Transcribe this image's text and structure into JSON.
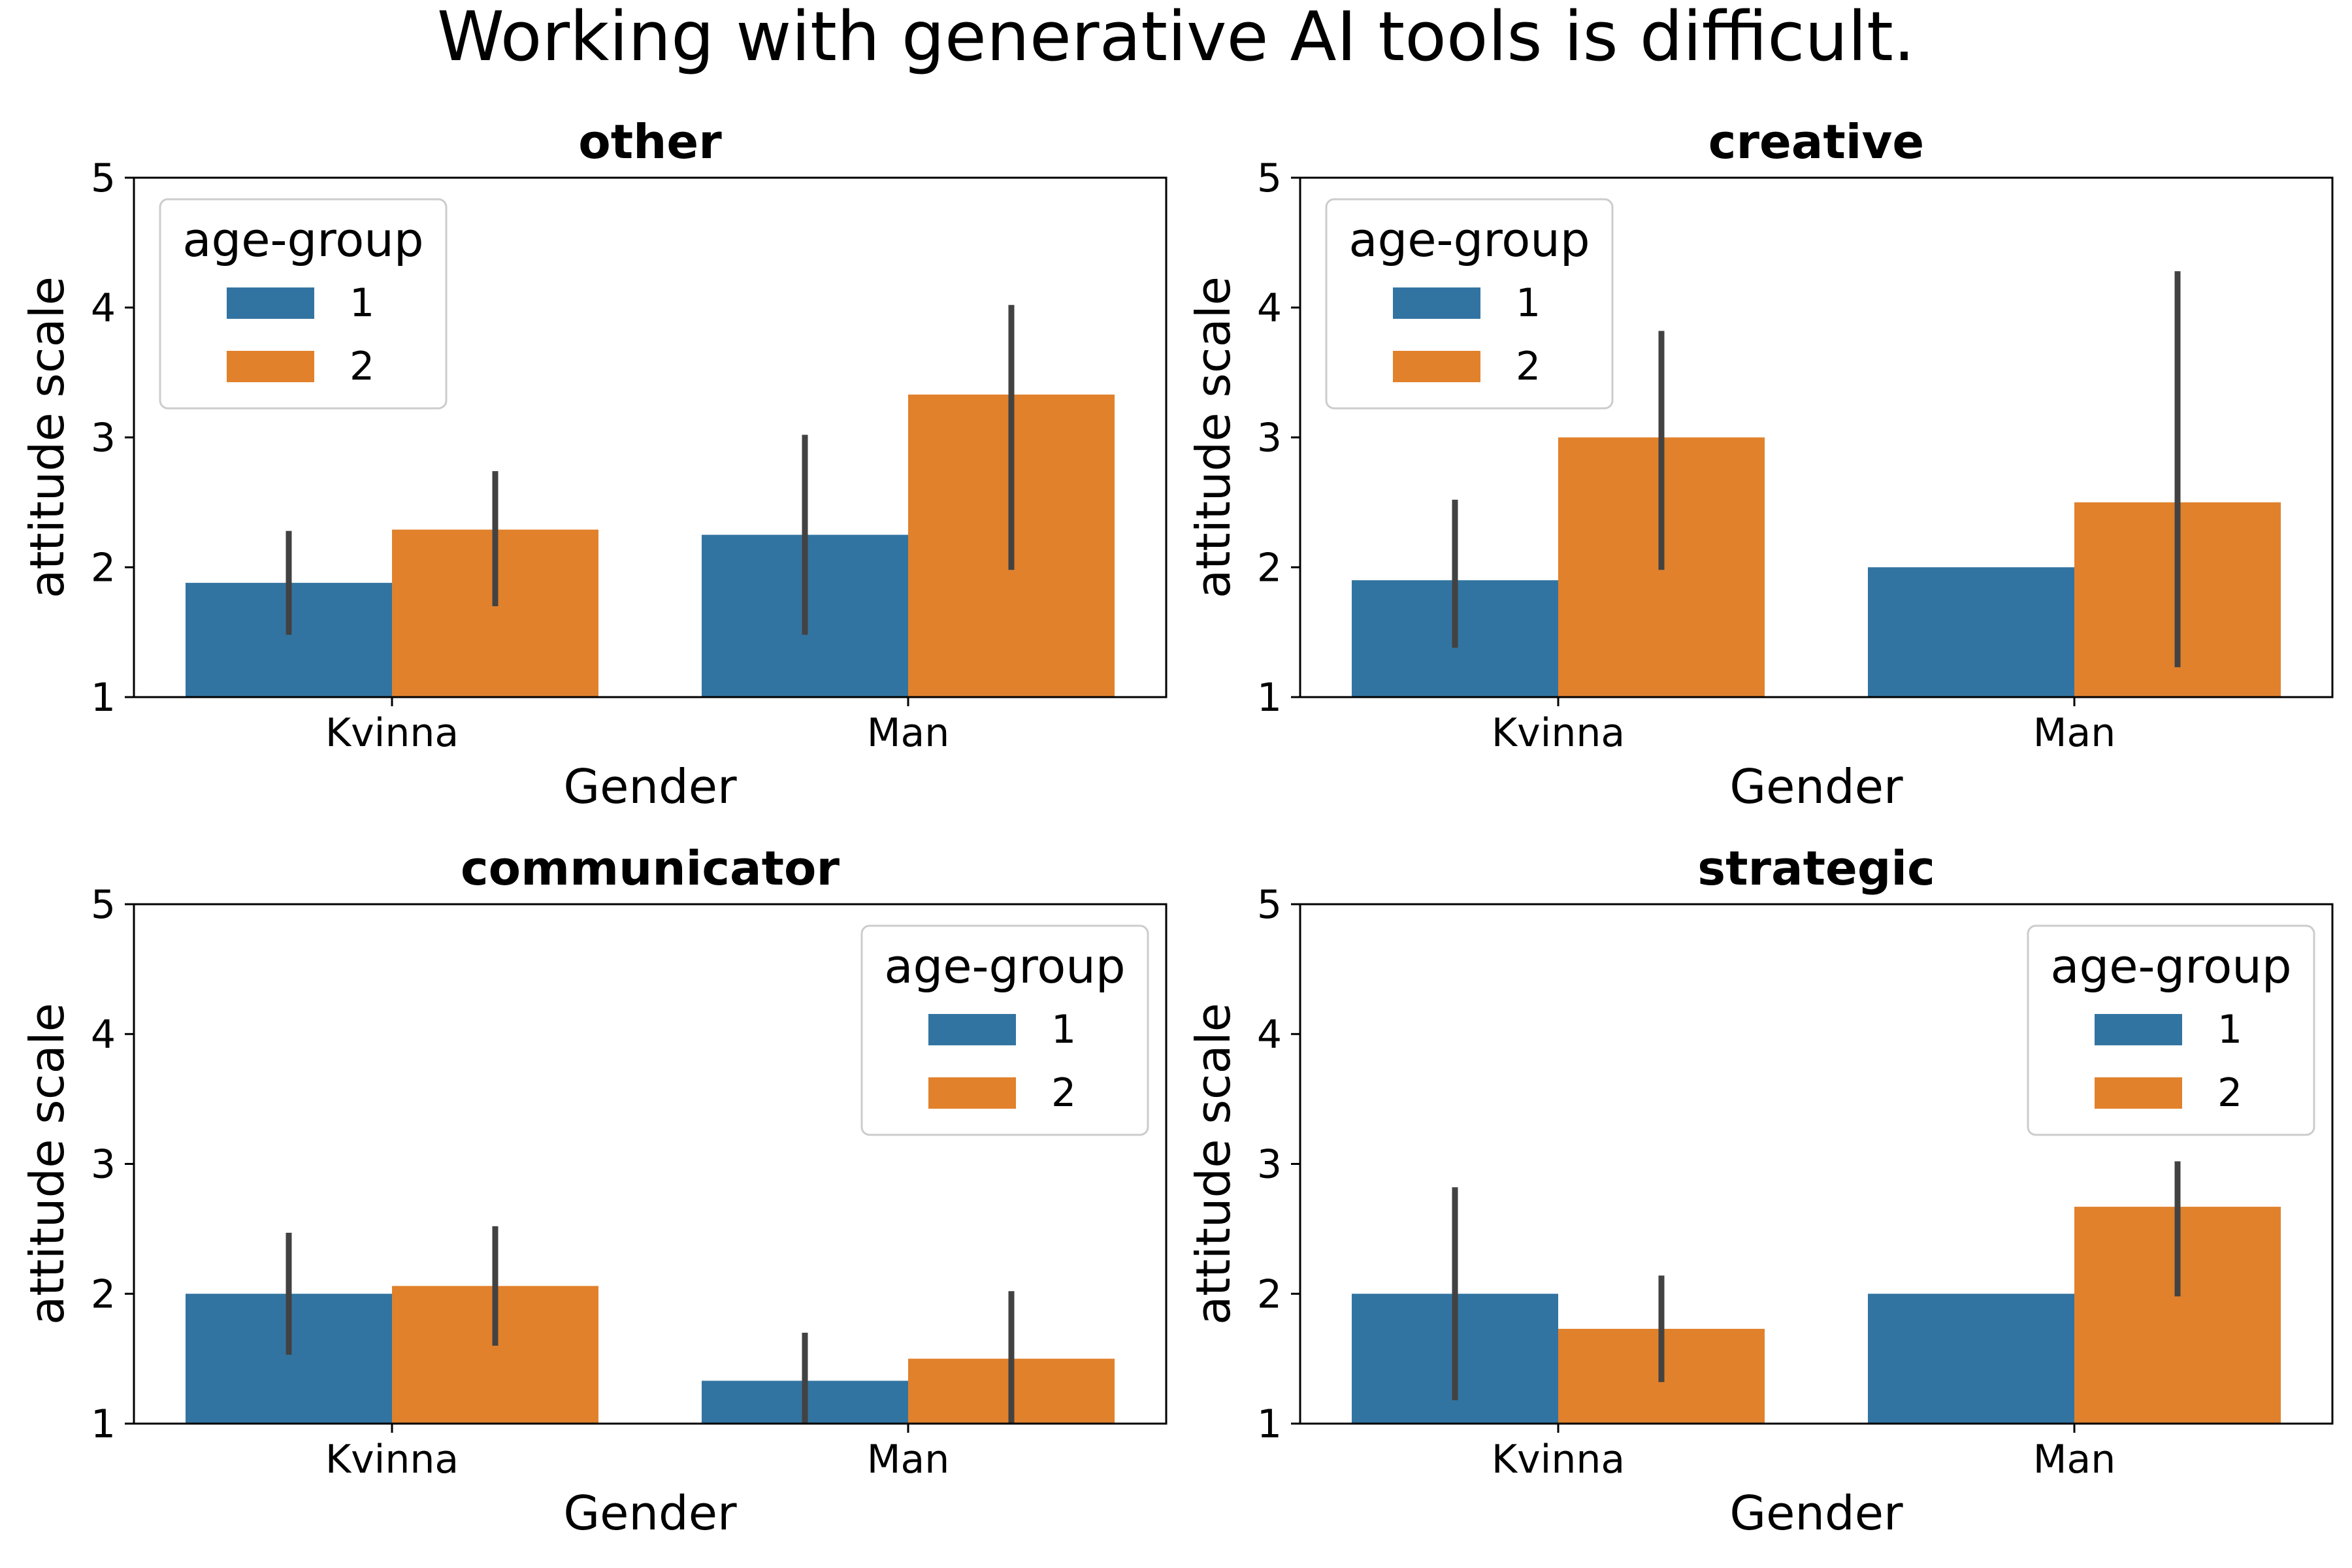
{
  "suptitle": "Working with generative AI tools is difficult.",
  "colors": {
    "1": "#3274a1",
    "2": "#e1812c",
    "errorbar": "#424242"
  },
  "chart_data": [
    {
      "type": "bar",
      "title": "other",
      "xlabel": "Gender",
      "ylabel": "attitude scale",
      "categories": [
        "Kvinna",
        "Man"
      ],
      "ylim": [
        1,
        5
      ],
      "yticks": [
        1,
        2,
        3,
        4,
        5
      ],
      "legend": {
        "title": "age-group",
        "placement": "top-left"
      },
      "series": [
        {
          "name": "1",
          "values": [
            1.88,
            2.25
          ],
          "ci_low": [
            1.48,
            1.48
          ],
          "ci_high": [
            2.28,
            3.02
          ]
        },
        {
          "name": "2",
          "values": [
            2.29,
            3.33
          ],
          "ci_low": [
            1.7,
            1.98
          ],
          "ci_high": [
            2.74,
            4.02
          ]
        }
      ]
    },
    {
      "type": "bar",
      "title": "creative",
      "xlabel": "Gender",
      "ylabel": "attitude scale",
      "categories": [
        "Kvinna",
        "Man"
      ],
      "ylim": [
        1,
        5
      ],
      "yticks": [
        1,
        2,
        3,
        4,
        5
      ],
      "legend": {
        "title": "age-group",
        "placement": "top-left"
      },
      "series": [
        {
          "name": "1",
          "values": [
            1.9,
            2.0
          ],
          "ci_low": [
            1.38,
            null
          ],
          "ci_high": [
            2.52,
            null
          ]
        },
        {
          "name": "2",
          "values": [
            3.0,
            2.5
          ],
          "ci_low": [
            1.98,
            1.23
          ],
          "ci_high": [
            3.82,
            4.28
          ]
        }
      ]
    },
    {
      "type": "bar",
      "title": "communicator",
      "xlabel": "Gender",
      "ylabel": "attitude scale",
      "categories": [
        "Kvinna",
        "Man"
      ],
      "ylim": [
        1,
        5
      ],
      "yticks": [
        1,
        2,
        3,
        4,
        5
      ],
      "legend": {
        "title": "age-group",
        "placement": "top-right"
      },
      "series": [
        {
          "name": "1",
          "values": [
            2.0,
            1.33
          ],
          "ci_low": [
            1.53,
            1.0
          ],
          "ci_high": [
            2.47,
            1.7
          ]
        },
        {
          "name": "2",
          "values": [
            2.06,
            1.5
          ],
          "ci_low": [
            1.6,
            1.0
          ],
          "ci_high": [
            2.52,
            2.02
          ]
        }
      ]
    },
    {
      "type": "bar",
      "title": "strategic",
      "xlabel": "Gender",
      "ylabel": "attitude scale",
      "categories": [
        "Kvinna",
        "Man"
      ],
      "ylim": [
        1,
        5
      ],
      "yticks": [
        1,
        2,
        3,
        4,
        5
      ],
      "legend": {
        "title": "age-group",
        "placement": "top-right"
      },
      "series": [
        {
          "name": "1",
          "values": [
            2.0,
            2.0
          ],
          "ci_low": [
            1.18,
            null
          ],
          "ci_high": [
            2.82,
            null
          ]
        },
        {
          "name": "2",
          "values": [
            1.73,
            2.67
          ],
          "ci_low": [
            1.32,
            1.98
          ],
          "ci_high": [
            2.14,
            3.02
          ]
        }
      ]
    }
  ]
}
